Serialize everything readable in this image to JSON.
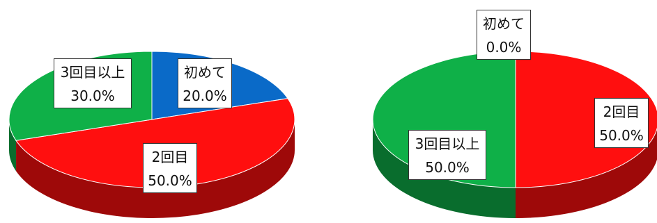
{
  "chart_data": [
    {
      "type": "pie",
      "slices": [
        {
          "label": "初めて",
          "value": 20.0,
          "value_label": "20.0%",
          "color": "#0a6ac8"
        },
        {
          "label": "2回目",
          "value": 50.0,
          "value_label": "50.0%",
          "color": "#ff0f0f"
        },
        {
          "label": "3回目以上",
          "value": 30.0,
          "value_label": "30.0%",
          "color": "#0fb048"
        }
      ]
    },
    {
      "type": "pie",
      "slices": [
        {
          "label": "初めて",
          "value": 0.0,
          "value_label": "0.0%",
          "color": "#0a6ac8"
        },
        {
          "label": "2回目",
          "value": 50.0,
          "value_label": "50.0%",
          "color": "#ff0f0f"
        },
        {
          "label": "3回目以上",
          "value": 50.0,
          "value_label": "50.0%",
          "color": "#0fb048"
        }
      ]
    }
  ]
}
